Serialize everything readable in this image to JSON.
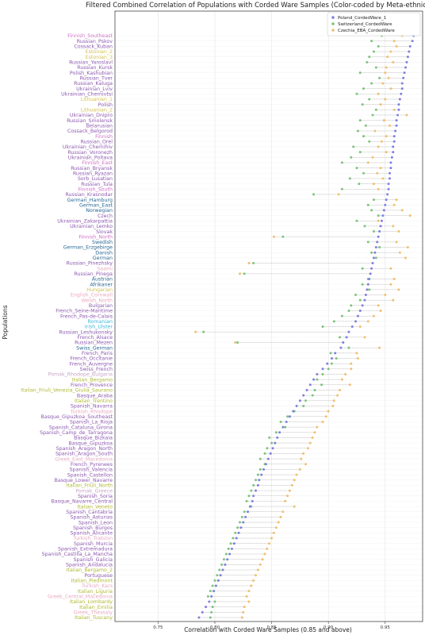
{
  "chart_data": {
    "type": "scatter",
    "title": "Filtered Combined Correlation of Populations with Corded Ware Samples (Color-coded by Meta-ethnicity)",
    "xlabel": "Correlation with Corded Ware Samples (0.85 and above)",
    "ylabel": "Populations",
    "xlim": [
      0.712,
      0.983
    ],
    "xticks": [
      "0.75",
      "0.80",
      "0.85",
      "0.90",
      "0.95"
    ],
    "xtick_values": [
      0.75,
      0.8,
      0.85,
      0.9,
      0.95
    ],
    "grid": true,
    "legend_position": "top-right",
    "series": [
      {
        "name": "Poland_CordedWare_1",
        "color": "#8080e0"
      },
      {
        "name": "Switzerland_CordedWare",
        "color": "#7cc47c"
      },
      {
        "name": "Czechia_EBA_CordedWare",
        "color": "#f0c070"
      }
    ],
    "group_colors": {
      "finnic": "#d070c8",
      "slavic": "#8e5ab0",
      "germanic": "#2a6a96",
      "latin": "#b0b830",
      "balkan": "#c8a6c8",
      "cyan": "#40b8d8",
      "turkic": "#e8a8c0",
      "gold": "#d4c050"
    },
    "populations": [
      {
        "name": "Finnish_Southeast",
        "group": "finnic",
        "v": [
          0.975,
          0.947,
          0.965
        ]
      },
      {
        "name": "Russian_Pskov",
        "group": "slavic",
        "v": [
          0.974,
          0.938,
          0.958
        ]
      },
      {
        "name": "Cossack_Kuban",
        "group": "slavic",
        "v": [
          0.972,
          0.944,
          0.96
        ]
      },
      {
        "name": "Estonian_2",
        "group": "gold",
        "v": [
          0.971,
          0.94,
          0.955
        ]
      },
      {
        "name": "Estonian_3",
        "group": "gold",
        "v": [
          0.97,
          0.936,
          0.952
        ]
      },
      {
        "name": "Russian_Yaroslavl",
        "group": "slavic",
        "v": [
          0.969,
          0.934,
          0.957
        ]
      },
      {
        "name": "Russian_Kursk",
        "group": "slavic",
        "v": [
          0.968,
          0.942,
          0.951
        ]
      },
      {
        "name": "Polish_Kashubian",
        "group": "slavic",
        "v": [
          0.967,
          0.928,
          0.95
        ]
      },
      {
        "name": "Russian_Tver",
        "group": "slavic",
        "v": [
          0.966,
          0.945,
          0.953
        ]
      },
      {
        "name": "Russian_Kaluga",
        "group": "slavic",
        "v": [
          0.965,
          0.938,
          0.948
        ]
      },
      {
        "name": "Ukrainian_Lviv",
        "group": "slavic",
        "v": [
          0.965,
          0.931,
          0.955
        ]
      },
      {
        "name": "Ukrainian_Chernivtsi",
        "group": "slavic",
        "v": [
          0.964,
          0.925,
          0.944
        ]
      },
      {
        "name": "Lithuanian_1",
        "group": "gold",
        "v": [
          0.963,
          0.936,
          0.95
        ]
      },
      {
        "name": "Polish",
        "group": "slavic",
        "v": [
          0.962,
          0.93,
          0.946
        ]
      },
      {
        "name": "Lithuanian_2",
        "group": "gold",
        "v": [
          0.962,
          0.942,
          0.958
        ]
      },
      {
        "name": "Ukrainian_Dnipro",
        "group": "slavic",
        "v": [
          0.961,
          0.939,
          0.969
        ]
      },
      {
        "name": "Russian_Smolensk",
        "group": "slavic",
        "v": [
          0.96,
          0.928,
          0.949
        ]
      },
      {
        "name": "Belarusian",
        "group": "slavic",
        "v": [
          0.96,
          0.933,
          0.954
        ]
      },
      {
        "name": "Cossack_Belgorod",
        "group": "slavic",
        "v": [
          0.959,
          0.926,
          0.941
        ]
      },
      {
        "name": "Finnish",
        "group": "finnic",
        "v": [
          0.958,
          0.931,
          0.951
        ]
      },
      {
        "name": "Russian_Orel",
        "group": "slavic",
        "v": [
          0.958,
          0.936,
          0.947
        ]
      },
      {
        "name": "Ukrainian_Chernihiv",
        "group": "slavic",
        "v": [
          0.957,
          0.922,
          0.944
        ]
      },
      {
        "name": "Russian_Voronezh",
        "group": "slavic",
        "v": [
          0.957,
          0.928,
          0.951
        ]
      },
      {
        "name": "Ukrainian_Poltava",
        "group": "slavic",
        "v": [
          0.956,
          0.92,
          0.939
        ]
      },
      {
        "name": "Finnish_East",
        "group": "finnic",
        "v": [
          0.955,
          0.912,
          0.935
        ]
      },
      {
        "name": "Russian_Bryansk",
        "group": "slavic",
        "v": [
          0.955,
          0.925,
          0.946
        ]
      },
      {
        "name": "Russian_Ryazan",
        "group": "slavic",
        "v": [
          0.954,
          0.931,
          0.943
        ]
      },
      {
        "name": "Sorb_Lusatian",
        "group": "slavic",
        "v": [
          0.954,
          0.919,
          0.948
        ]
      },
      {
        "name": "Russian_Tula",
        "group": "slavic",
        "v": [
          0.953,
          0.927,
          0.94
        ]
      },
      {
        "name": "Finnish_South",
        "group": "finnic",
        "v": [
          0.953,
          0.912,
          0.944
        ]
      },
      {
        "name": "Russian_Krasnodar",
        "group": "slavic",
        "v": [
          0.952,
          0.887,
          0.909
        ]
      },
      {
        "name": "German_Hamburg",
        "group": "germanic",
        "v": [
          0.951,
          0.94,
          0.96
        ]
      },
      {
        "name": "German_East",
        "group": "germanic",
        "v": [
          0.95,
          0.935,
          0.958
        ]
      },
      {
        "name": "Norwegian",
        "group": "germanic",
        "v": [
          0.949,
          0.938,
          0.965
        ]
      },
      {
        "name": "Czech",
        "group": "slavic",
        "v": [
          0.948,
          0.944,
          0.972
        ]
      },
      {
        "name": "Ukrainian_Zakarpattia",
        "group": "slavic",
        "v": [
          0.947,
          0.925,
          0.944
        ]
      },
      {
        "name": "Ukrainian_Lemko",
        "group": "slavic",
        "v": [
          0.946,
          0.932,
          0.957
        ]
      },
      {
        "name": "Slovak",
        "group": "slavic",
        "v": [
          0.945,
          0.94,
          0.962
        ]
      },
      {
        "name": "Finnish_North",
        "group": "finnic",
        "v": [
          0.944,
          0.86,
          0.852
        ]
      },
      {
        "name": "Swedish",
        "group": "germanic",
        "v": [
          0.943,
          0.935,
          0.96
        ]
      },
      {
        "name": "German_Erzgebirge",
        "group": "germanic",
        "v": [
          0.942,
          0.945,
          0.97
        ]
      },
      {
        "name": "Danish",
        "group": "germanic",
        "v": [
          0.941,
          0.938,
          0.963
        ]
      },
      {
        "name": "German",
        "group": "germanic",
        "v": [
          0.94,
          0.942,
          0.968
        ]
      },
      {
        "name": "Russian_Pinezhsky",
        "group": "slavic",
        "v": [
          0.939,
          0.834,
          0.83
        ]
      },
      {
        "name": "Saami",
        "group": "turkic",
        "v": [
          0.938,
          0.93,
          0.955
        ]
      },
      {
        "name": "Russian_Pinega",
        "group": "slavic",
        "v": [
          0.937,
          0.826,
          0.822
        ]
      },
      {
        "name": "Austrian",
        "group": "germanic",
        "v": [
          0.936,
          0.935,
          0.958
        ]
      },
      {
        "name": "Afrikaner",
        "group": "germanic",
        "v": [
          0.935,
          0.93,
          0.955
        ]
      },
      {
        "name": "Hungarian",
        "group": "gold",
        "v": [
          0.934,
          0.936,
          0.962
        ]
      },
      {
        "name": "English_Cornwall",
        "group": "turkic",
        "v": [
          0.933,
          0.924,
          0.95
        ]
      },
      {
        "name": "Welsh_North",
        "group": "turkic",
        "v": [
          0.932,
          0.928,
          0.957
        ]
      },
      {
        "name": "Bulgarian",
        "group": "slavic",
        "v": [
          0.93,
          0.92,
          0.944
        ]
      },
      {
        "name": "French_Seine-Maritime",
        "group": "slavic",
        "v": [
          0.928,
          0.918,
          0.946
        ]
      },
      {
        "name": "French_Pas-de-Calais",
        "group": "slavic",
        "v": [
          0.926,
          0.912,
          0.94
        ]
      },
      {
        "name": "Romanian",
        "group": "cyan",
        "v": [
          0.924,
          0.905,
          0.935
        ]
      },
      {
        "name": "Irish_Ulster",
        "group": "cyan",
        "v": [
          0.921,
          0.895,
          0.928
        ]
      },
      {
        "name": "Russian_Leshukonsky",
        "group": "slavic",
        "v": [
          0.918,
          0.79,
          0.783
        ]
      },
      {
        "name": "French_Alsace",
        "group": "slavic",
        "v": [
          0.916,
          0.91,
          0.932
        ]
      },
      {
        "name": "Russian_Mezen",
        "group": "slavic",
        "v": [
          0.913,
          0.82,
          0.818
        ]
      },
      {
        "name": "Swiss_German",
        "group": "germanic",
        "v": [
          0.911,
          0.918,
          0.945
        ]
      },
      {
        "name": "French_Paris",
        "group": "slavic",
        "v": [
          0.906,
          0.902,
          0.925
        ]
      },
      {
        "name": "French_Occitanie",
        "group": "slavic",
        "v": [
          0.903,
          0.907,
          0.926
        ]
      },
      {
        "name": "French_Auvergne",
        "group": "slavic",
        "v": [
          0.899,
          0.903,
          0.92
        ]
      },
      {
        "name": "Swiss_French",
        "group": "slavic",
        "v": [
          0.895,
          0.9,
          0.92
        ]
      },
      {
        "name": "Pomak_Rhodope_Bulgaria",
        "group": "balkan",
        "v": [
          0.89,
          0.895,
          0.915
        ]
      },
      {
        "name": "Italian_Bergamo",
        "group": "latin",
        "v": [
          0.887,
          0.89,
          0.912
        ]
      },
      {
        "name": "French_Provence",
        "group": "slavic",
        "v": [
          0.884,
          0.894,
          0.919
        ]
      },
      {
        "name": "Italian_Friuli_Venezia_Giulia_Saurano",
        "group": "latin",
        "v": [
          0.881,
          0.888,
          0.91
        ]
      },
      {
        "name": "Basque_Araba",
        "group": "slavic",
        "v": [
          0.878,
          0.886,
          0.908
        ]
      },
      {
        "name": "Italian_Trentino",
        "group": "latin",
        "v": [
          0.875,
          0.88,
          0.905
        ]
      },
      {
        "name": "Spanish_Navarra",
        "group": "slavic",
        "v": [
          0.872,
          0.878,
          0.904
        ]
      },
      {
        "name": "Turkish_Rhodope",
        "group": "turkic",
        "v": [
          0.869,
          0.87,
          0.9
        ]
      },
      {
        "name": "Basque_Gipuzkoa_Southeast",
        "group": "slavic",
        "v": [
          0.866,
          0.864,
          0.898
        ]
      },
      {
        "name": "Spanish_La_Rioja",
        "group": "slavic",
        "v": [
          0.863,
          0.858,
          0.895
        ]
      },
      {
        "name": "Spanish_Cataluna_Girona",
        "group": "slavic",
        "v": [
          0.86,
          0.862,
          0.89
        ]
      },
      {
        "name": "Spanish_Camp_de_Tarragona",
        "group": "slavic",
        "v": [
          0.857,
          0.854,
          0.888
        ]
      },
      {
        "name": "Basque_Bizkaia",
        "group": "slavic",
        "v": [
          0.855,
          0.848,
          0.886
        ]
      },
      {
        "name": "Basque_Gipuzkoa",
        "group": "slavic",
        "v": [
          0.853,
          0.85,
          0.884
        ]
      },
      {
        "name": "Spanish_Aragon_North",
        "group": "slavic",
        "v": [
          0.851,
          0.846,
          0.882
        ]
      },
      {
        "name": "Spanish_Aragon_South",
        "group": "slavic",
        "v": [
          0.849,
          0.844,
          0.878
        ]
      },
      {
        "name": "Greek_East_Macedonia",
        "group": "turkic",
        "v": [
          0.847,
          0.84,
          0.876
        ]
      },
      {
        "name": "French_Pyrenees",
        "group": "slavic",
        "v": [
          0.845,
          0.844,
          0.88
        ]
      },
      {
        "name": "Spanish_Valencia",
        "group": "slavic",
        "v": [
          0.843,
          0.84,
          0.875
        ]
      },
      {
        "name": "Spanish_Castellon",
        "group": "slavic",
        "v": [
          0.841,
          0.838,
          0.872
        ]
      },
      {
        "name": "Basque_Lower_Navarre",
        "group": "slavic",
        "v": [
          0.839,
          0.836,
          0.87
        ]
      },
      {
        "name": "Italian_Friuli_North",
        "group": "latin",
        "v": [
          0.838,
          0.834,
          0.868
        ]
      },
      {
        "name": "Pomak_Greece",
        "group": "balkan",
        "v": [
          0.836,
          0.832,
          0.866
        ]
      },
      {
        "name": "Spanish_Soria",
        "group": "slavic",
        "v": [
          0.834,
          0.83,
          0.864
        ]
      },
      {
        "name": "Basque_Navarre_Central",
        "group": "slavic",
        "v": [
          0.833,
          0.828,
          0.862
        ]
      },
      {
        "name": "Italian_Veneto",
        "group": "latin",
        "v": [
          0.831,
          0.832,
          0.87
        ]
      },
      {
        "name": "Spanish_Cantabria",
        "group": "slavic",
        "v": [
          0.829,
          0.826,
          0.86
        ]
      },
      {
        "name": "Spanish_Asturias",
        "group": "slavic",
        "v": [
          0.827,
          0.824,
          0.858
        ]
      },
      {
        "name": "Spanish_Leon",
        "group": "slavic",
        "v": [
          0.825,
          0.822,
          0.856
        ]
      },
      {
        "name": "Spanish_Burgos",
        "group": "slavic",
        "v": [
          0.823,
          0.82,
          0.854
        ]
      },
      {
        "name": "Spanish_Alicante",
        "group": "slavic",
        "v": [
          0.821,
          0.818,
          0.852
        ]
      },
      {
        "name": "Turkish_Trabzon",
        "group": "turkic",
        "v": [
          0.819,
          0.816,
          0.85
        ]
      },
      {
        "name": "Spanish_Murcia",
        "group": "slavic",
        "v": [
          0.817,
          0.814,
          0.848
        ]
      },
      {
        "name": "Spanish_Extremadura",
        "group": "slavic",
        "v": [
          0.815,
          0.812,
          0.846
        ]
      },
      {
        "name": "Spanish_Castilla_La_Mancha",
        "group": "slavic",
        "v": [
          0.813,
          0.81,
          0.844
        ]
      },
      {
        "name": "Spanish_Galicia",
        "group": "slavic",
        "v": [
          0.811,
          0.808,
          0.842
        ]
      },
      {
        "name": "Spanish_Andalucia",
        "group": "slavic",
        "v": [
          0.809,
          0.806,
          0.84
        ]
      },
      {
        "name": "Italian_Bergamo_2",
        "group": "latin",
        "v": [
          0.807,
          0.804,
          0.838
        ]
      },
      {
        "name": "Portuguese",
        "group": "slavic",
        "v": [
          0.805,
          0.802,
          0.836
        ]
      },
      {
        "name": "Italian_Piedmont",
        "group": "latin",
        "v": [
          0.803,
          0.8,
          0.834
        ]
      },
      {
        "name": "Turkish_Kars",
        "group": "turkic",
        "v": [
          0.801,
          0.798,
          0.832
        ]
      },
      {
        "name": "Italian_Liguria",
        "group": "latin",
        "v": [
          0.799,
          0.796,
          0.83
        ]
      },
      {
        "name": "Greek_Central_Macedonia",
        "group": "turkic",
        "v": [
          0.797,
          0.794,
          0.828
        ]
      },
      {
        "name": "Italian_Lombardy",
        "group": "latin",
        "v": [
          0.795,
          0.8,
          0.83
        ]
      },
      {
        "name": "Italian_Emilia",
        "group": "latin",
        "v": [
          0.792,
          0.798,
          0.826
        ]
      },
      {
        "name": "Greek_Thessaly",
        "group": "turkic",
        "v": [
          0.789,
          0.797,
          0.825
        ]
      },
      {
        "name": "Italian_Tuscany",
        "group": "latin",
        "v": [
          0.786,
          0.796,
          0.824
        ]
      }
    ]
  }
}
